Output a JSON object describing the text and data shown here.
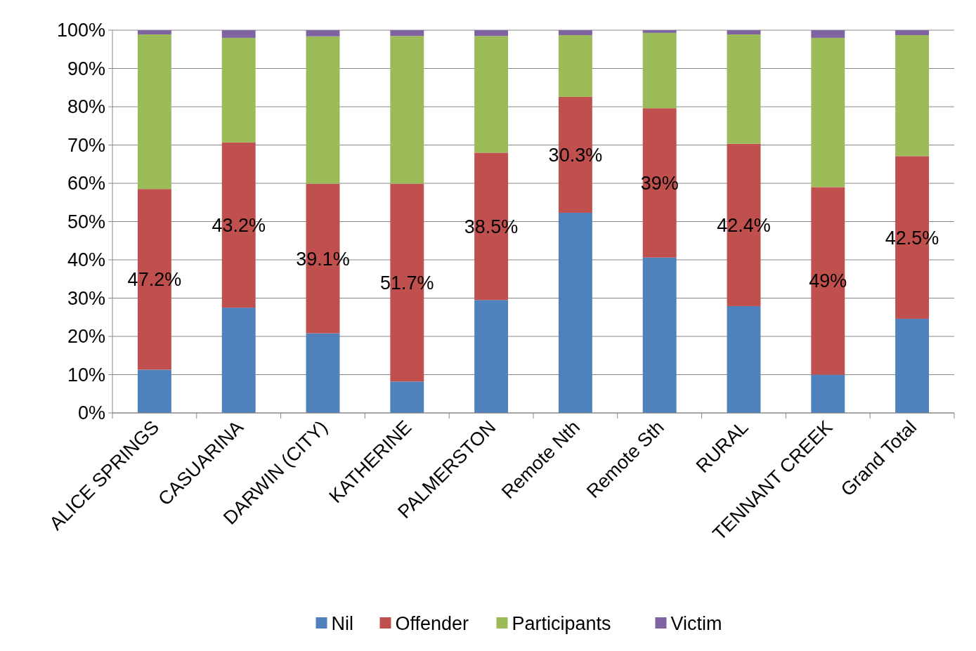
{
  "chart_data": {
    "type": "bar",
    "stacked": true,
    "categories": [
      "ALICE SPRINGS",
      "CASUARINA",
      "DARWIN (CITY)",
      "KATHERINE",
      "PALMERSTON",
      "Remote Nth",
      "Remote Sth",
      "RURAL",
      "TENNANT CREEK",
      "Grand Total"
    ],
    "series": [
      {
        "name": "Nil",
        "color": "#4f81bd",
        "values": [
          11.3,
          27.5,
          20.8,
          8.2,
          29.5,
          52.3,
          40.6,
          27.9,
          10.0,
          24.6
        ]
      },
      {
        "name": "Offender",
        "color": "#c0504d",
        "values": [
          47.2,
          43.2,
          39.1,
          51.7,
          38.5,
          30.3,
          39,
          42.4,
          49,
          42.5
        ],
        "value_labels": [
          "47.2%",
          "43.2%",
          "39.1%",
          "51.7%",
          "38.5%",
          "30.3%",
          "39%",
          "42.4%",
          "49%",
          "42.5%"
        ]
      },
      {
        "name": "Participants",
        "color": "#9bbb59",
        "values": [
          40.4,
          27.3,
          38.5,
          38.6,
          30.5,
          16.1,
          19.7,
          28.6,
          39.0,
          31.6
        ]
      },
      {
        "name": "Victim",
        "color": "#8064a2",
        "values": [
          1.1,
          2.0,
          1.6,
          1.5,
          1.5,
          1.3,
          0.7,
          1.1,
          2.0,
          1.3
        ]
      }
    ],
    "ylim": [
      0,
      100
    ],
    "yticks": [
      {
        "value": 0,
        "label": "0%"
      },
      {
        "value": 10,
        "label": "10%"
      },
      {
        "value": 20,
        "label": "20%"
      },
      {
        "value": 30,
        "label": "30%"
      },
      {
        "value": 40,
        "label": "40%"
      },
      {
        "value": 50,
        "label": "50%"
      },
      {
        "value": 60,
        "label": "60%"
      },
      {
        "value": 70,
        "label": "70%"
      },
      {
        "value": 80,
        "label": "80%"
      },
      {
        "value": 90,
        "label": "90%"
      },
      {
        "value": 100,
        "label": "100%"
      }
    ],
    "grid": "y",
    "legend": "bottom"
  }
}
